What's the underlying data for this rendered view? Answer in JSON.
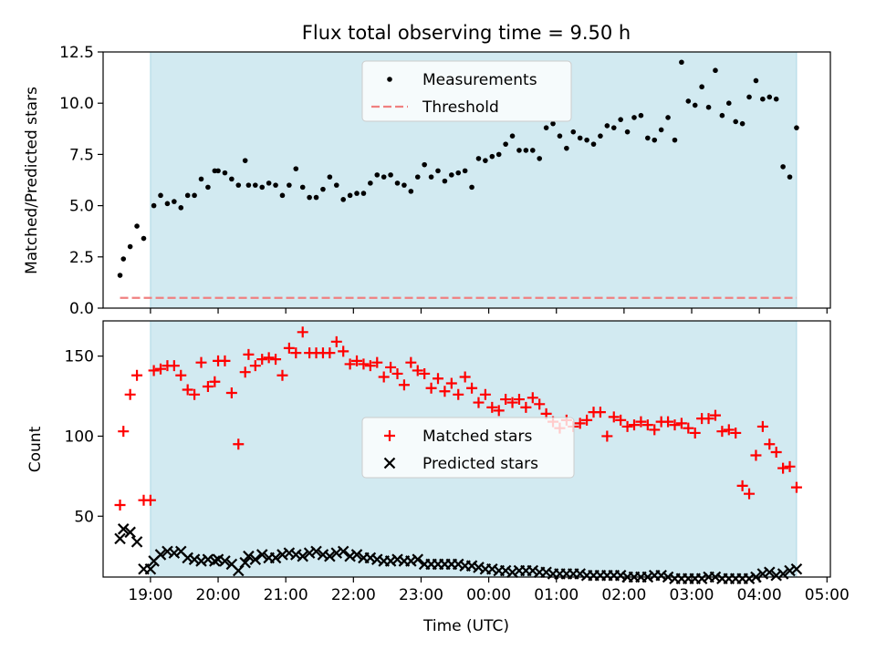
{
  "chart_data": [
    {
      "type": "scatter",
      "title": "Flux total observing time = 9.50 h",
      "xlabel": "",
      "ylabel": "Matched/Predicted stars",
      "xlim": [
        18.3,
        29.05
      ],
      "ylim": [
        0,
        12.5
      ],
      "yticks": [
        0.0,
        2.5,
        5.0,
        7.5,
        10.0,
        12.5
      ],
      "ytick_labels": [
        "0.0",
        "2.5",
        "5.0",
        "7.5",
        "10.0",
        "12.5"
      ],
      "observing_window": [
        19.0,
        28.55
      ],
      "shade_color": "#add8e6",
      "threshold": {
        "value": 0.5,
        "color": "#f08080",
        "x_range": [
          18.55,
          28.55
        ]
      },
      "legend": {
        "position": "top-center",
        "entries": [
          "Measurements",
          "Threshold"
        ]
      },
      "series": [
        {
          "name": "Measurements",
          "color": "#000000",
          "marker": "dot",
          "x": [
            18.55,
            18.6,
            18.7,
            18.8,
            18.9,
            19.05,
            19.15,
            19.25,
            19.35,
            19.45,
            19.55,
            19.65,
            19.75,
            19.85,
            19.95,
            20.0,
            20.1,
            20.2,
            20.3,
            20.4,
            20.45,
            20.55,
            20.65,
            20.75,
            20.85,
            20.95,
            21.05,
            21.15,
            21.25,
            21.35,
            21.45,
            21.55,
            21.65,
            21.75,
            21.85,
            21.95,
            22.05,
            22.15,
            22.25,
            22.35,
            22.45,
            22.55,
            22.65,
            22.75,
            22.85,
            22.95,
            23.05,
            23.15,
            23.25,
            23.35,
            23.45,
            23.55,
            23.65,
            23.75,
            23.85,
            23.95,
            24.05,
            24.15,
            24.25,
            24.35,
            24.45,
            24.55,
            24.65,
            24.75,
            24.85,
            24.95,
            25.05,
            25.15,
            25.25,
            25.35,
            25.45,
            25.55,
            25.65,
            25.75,
            25.85,
            25.95,
            26.05,
            26.15,
            26.25,
            26.35,
            26.45,
            26.55,
            26.65,
            26.75,
            26.85,
            26.95,
            27.05,
            27.15,
            27.25,
            27.35,
            27.45,
            27.55,
            27.65,
            27.75,
            27.85,
            27.95,
            28.05,
            28.15,
            28.25,
            28.35,
            28.45,
            28.55
          ],
          "values": [
            1.6,
            2.4,
            3.0,
            4.0,
            3.4,
            5.0,
            5.5,
            5.1,
            5.2,
            4.9,
            5.5,
            5.5,
            6.3,
            5.9,
            6.7,
            6.7,
            6.6,
            6.3,
            6.0,
            7.2,
            6.0,
            6.0,
            5.9,
            6.1,
            6.0,
            5.5,
            6.0,
            6.8,
            5.9,
            5.4,
            5.4,
            5.8,
            6.4,
            6.0,
            5.3,
            5.5,
            5.6,
            5.6,
            6.1,
            6.5,
            6.4,
            6.5,
            6.1,
            6.0,
            5.7,
            6.4,
            7.0,
            6.4,
            6.7,
            6.2,
            6.5,
            6.6,
            6.7,
            5.9,
            7.3,
            7.2,
            7.4,
            7.5,
            8.0,
            8.4,
            7.7,
            7.7,
            7.7,
            7.3,
            8.8,
            9.0,
            8.4,
            7.8,
            8.6,
            8.3,
            8.2,
            8.0,
            8.4,
            8.9,
            8.8,
            9.2,
            8.6,
            9.3,
            9.4,
            8.3,
            8.2,
            8.7,
            9.3,
            8.2,
            12.0,
            10.1,
            9.9,
            10.8,
            9.8,
            11.6,
            9.4,
            10.0,
            9.1,
            9.0,
            10.3,
            11.1,
            10.2,
            10.3,
            10.2,
            6.9,
            6.4,
            8.8
          ]
        }
      ]
    },
    {
      "type": "scatter",
      "title": "",
      "xlabel": "Time (UTC)",
      "ylabel": "Count",
      "xlim": [
        18.3,
        29.05
      ],
      "ylim": [
        12,
        172
      ],
      "yticks": [
        50,
        100,
        150
      ],
      "ytick_labels": [
        "50",
        "100",
        "150"
      ],
      "xticks": [
        19,
        20,
        21,
        22,
        23,
        24,
        25,
        26,
        27,
        28,
        29
      ],
      "xtick_labels": [
        "19:00",
        "20:00",
        "21:00",
        "22:00",
        "23:00",
        "00:00",
        "01:00",
        "02:00",
        "03:00",
        "04:00",
        "05:00"
      ],
      "observing_window": [
        19.0,
        28.55
      ],
      "shade_color": "#add8e6",
      "legend": {
        "position": "center",
        "entries": [
          "Matched stars",
          "Predicted stars"
        ]
      },
      "series": [
        {
          "name": "Matched stars",
          "color": "#ff0000",
          "marker": "plus",
          "x": [
            18.55,
            18.6,
            18.7,
            18.8,
            18.9,
            19.0,
            19.05,
            19.15,
            19.25,
            19.35,
            19.45,
            19.55,
            19.65,
            19.75,
            19.85,
            19.95,
            20.0,
            20.1,
            20.2,
            20.3,
            20.4,
            20.45,
            20.55,
            20.65,
            20.75,
            20.85,
            20.95,
            21.05,
            21.15,
            21.25,
            21.35,
            21.45,
            21.55,
            21.65,
            21.75,
            21.85,
            21.95,
            22.05,
            22.15,
            22.25,
            22.35,
            22.45,
            22.55,
            22.65,
            22.75,
            22.85,
            22.95,
            23.05,
            23.15,
            23.25,
            23.35,
            23.45,
            23.55,
            23.65,
            23.75,
            23.85,
            23.95,
            24.05,
            24.15,
            24.25,
            24.35,
            24.45,
            24.55,
            24.65,
            24.75,
            24.85,
            24.95,
            25.05,
            25.15,
            25.25,
            25.35,
            25.45,
            25.55,
            25.65,
            25.75,
            25.85,
            25.95,
            26.05,
            26.15,
            26.25,
            26.35,
            26.45,
            26.55,
            26.65,
            26.75,
            26.85,
            26.95,
            27.05,
            27.15,
            27.25,
            27.35,
            27.45,
            27.55,
            27.65,
            27.75,
            27.85,
            27.95,
            28.05,
            28.15,
            28.25,
            28.35,
            28.45,
            28.55
          ],
          "values": [
            57,
            103,
            126,
            138,
            60,
            60,
            141,
            142,
            144,
            144,
            138,
            129,
            126,
            146,
            131,
            134,
            147,
            147,
            127,
            95,
            140,
            151,
            144,
            148,
            149,
            148,
            138,
            155,
            152,
            165,
            152,
            152,
            152,
            152,
            159,
            153,
            145,
            147,
            145,
            144,
            146,
            137,
            143,
            139,
            132,
            146,
            141,
            139,
            130,
            136,
            128,
            133,
            126,
            137,
            130,
            121,
            126,
            118,
            116,
            123,
            121,
            123,
            118,
            124,
            120,
            114,
            109,
            105,
            110,
            106,
            108,
            110,
            115,
            115,
            100,
            112,
            110,
            106,
            107,
            109,
            107,
            104,
            109,
            109,
            107,
            108,
            105,
            102,
            111,
            111,
            113,
            103,
            104,
            102,
            69,
            64,
            88,
            106,
            95,
            90,
            80,
            81,
            68
          ]
        },
        {
          "name": "Predicted stars",
          "color": "#000000",
          "marker": "x",
          "x": [
            18.55,
            18.6,
            18.7,
            18.8,
            18.9,
            19.0,
            19.05,
            19.15,
            19.25,
            19.35,
            19.45,
            19.55,
            19.65,
            19.75,
            19.85,
            19.95,
            20.0,
            20.1,
            20.2,
            20.3,
            20.4,
            20.45,
            20.55,
            20.65,
            20.75,
            20.85,
            20.95,
            21.05,
            21.15,
            21.25,
            21.35,
            21.45,
            21.55,
            21.65,
            21.75,
            21.85,
            21.95,
            22.05,
            22.15,
            22.25,
            22.35,
            22.45,
            22.55,
            22.65,
            22.75,
            22.85,
            22.95,
            23.05,
            23.15,
            23.25,
            23.35,
            23.45,
            23.55,
            23.65,
            23.75,
            23.85,
            23.95,
            24.05,
            24.15,
            24.25,
            24.35,
            24.45,
            24.55,
            24.65,
            24.75,
            24.85,
            24.95,
            25.05,
            25.15,
            25.25,
            25.35,
            25.45,
            25.55,
            25.65,
            25.75,
            25.85,
            25.95,
            26.05,
            26.15,
            26.25,
            26.35,
            26.45,
            26.55,
            26.65,
            26.75,
            26.85,
            26.95,
            27.05,
            27.15,
            27.25,
            27.35,
            27.45,
            27.55,
            27.65,
            27.75,
            27.85,
            27.95,
            28.05,
            28.15,
            28.25,
            28.35,
            28.45,
            28.55
          ],
          "values": [
            36,
            42,
            40,
            34,
            17,
            17,
            22,
            26,
            28,
            27,
            28,
            24,
            23,
            22,
            23,
            22,
            23,
            22,
            20,
            16,
            21,
            25,
            23,
            26,
            24,
            24,
            26,
            27,
            26,
            25,
            27,
            28,
            26,
            25,
            27,
            28,
            25,
            26,
            24,
            24,
            23,
            22,
            22,
            23,
            22,
            22,
            23,
            20,
            20,
            20,
            20,
            20,
            20,
            19,
            19,
            18,
            17,
            17,
            16,
            16,
            15,
            16,
            16,
            16,
            15,
            15,
            14,
            14,
            14,
            14,
            14,
            13,
            13,
            13,
            13,
            13,
            13,
            12,
            12,
            12,
            12,
            13,
            13,
            12,
            11,
            11,
            11,
            11,
            11,
            12,
            12,
            11,
            11,
            11,
            11,
            11,
            12,
            14,
            15,
            13,
            14,
            16,
            17
          ]
        }
      ]
    }
  ]
}
